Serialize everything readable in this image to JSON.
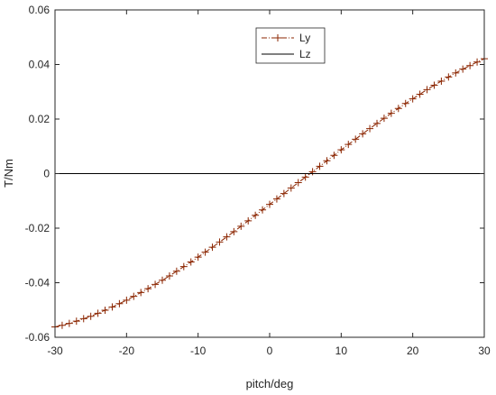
{
  "chart_data": {
    "type": "line",
    "xlabel": "pitch/deg",
    "ylabel": "T/Nm",
    "xlim": [
      -30,
      30
    ],
    "ylim": [
      -0.06,
      0.06
    ],
    "xticks": [
      -30,
      -20,
      -10,
      0,
      10,
      20,
      30
    ],
    "yticks": [
      -0.06,
      -0.04,
      -0.02,
      0,
      0.02,
      0.04,
      0.06
    ],
    "xtick_labels": [
      "-30",
      "-20",
      "-10",
      "0",
      "10",
      "20",
      "30"
    ],
    "ytick_labels": [
      "-0.06",
      "-0.04",
      "-0.02",
      "0",
      "0.02",
      "0.04",
      "0.06"
    ],
    "grid": false,
    "legend_position": "top-center",
    "series": [
      {
        "name": "Ly",
        "color": "#8b2500",
        "marker": "plus",
        "line_style": "dash-dot",
        "x": [
          -30,
          -29,
          -28,
          -27,
          -26,
          -25,
          -24,
          -23,
          -22,
          -21,
          -20,
          -19,
          -18,
          -17,
          -16,
          -15,
          -14,
          -13,
          -12,
          -11,
          -10,
          -9,
          -8,
          -7,
          -6,
          -5,
          -4,
          -3,
          -2,
          -1,
          0,
          1,
          2,
          3,
          4,
          5,
          6,
          7,
          8,
          9,
          10,
          11,
          12,
          13,
          14,
          15,
          16,
          17,
          18,
          19,
          20,
          21,
          22,
          23,
          24,
          25,
          26,
          27,
          28,
          29,
          30
        ],
        "y": [
          -0.0562,
          -0.0556,
          -0.0549,
          -0.0541,
          -0.0532,
          -0.0523,
          -0.0512,
          -0.0501,
          -0.0489,
          -0.0477,
          -0.0464,
          -0.045,
          -0.0436,
          -0.0422,
          -0.0406,
          -0.0391,
          -0.0375,
          -0.0358,
          -0.0341,
          -0.0324,
          -0.0306,
          -0.0288,
          -0.027,
          -0.0251,
          -0.0232,
          -0.0213,
          -0.0193,
          -0.0173,
          -0.0153,
          -0.0133,
          -0.0113,
          -0.0093,
          -0.0073,
          -0.0053,
          -0.0033,
          -0.0013,
          0.0007,
          0.0027,
          0.0047,
          0.0067,
          0.0087,
          0.0107,
          0.0126,
          0.0146,
          0.0165,
          0.0184,
          0.0203,
          0.0221,
          0.0239,
          0.0257,
          0.0274,
          0.0291,
          0.0308,
          0.0324,
          0.0339,
          0.0354,
          0.0369,
          0.0383,
          0.0396,
          0.0409,
          0.0421
        ]
      },
      {
        "name": "Lz",
        "color": "#000000",
        "marker": "none",
        "line_style": "solid",
        "x": [
          -30,
          30
        ],
        "y": [
          0,
          0
        ]
      }
    ]
  }
}
